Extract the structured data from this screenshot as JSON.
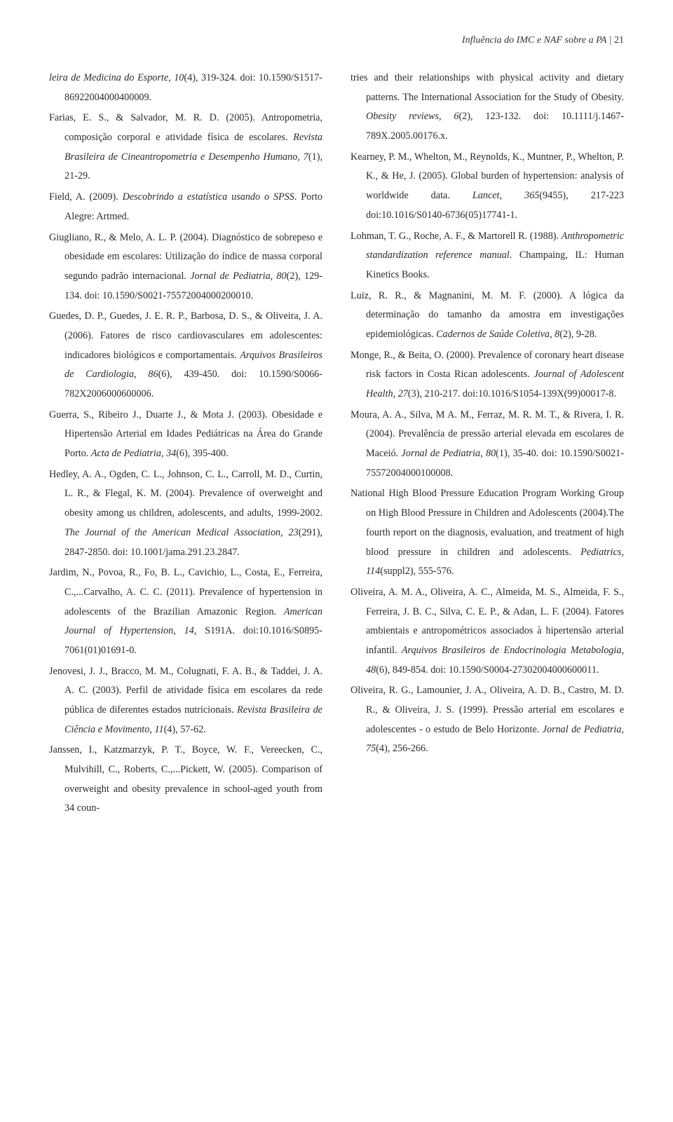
{
  "running_head": {
    "text": "Influência do IMC e NAF sobre a PA",
    "divider": " | ",
    "page": "21"
  },
  "left_column": [
    [
      {
        "t": "leira de Medicina do Esporte, 10",
        "i": true
      },
      {
        "t": "(4), 319-324. doi: 10.1590/S1517-86922004000400009."
      }
    ],
    [
      {
        "t": "Farias, E. S., & Salvador, M. R. D. (2005). Antropometria, composição corporal e atividade física de escolares. "
      },
      {
        "t": "Revista Brasileira de Cineantropometria e Desempenho Humano, 7",
        "i": true
      },
      {
        "t": "(1), 21-29."
      }
    ],
    [
      {
        "t": "Field, A. (2009). "
      },
      {
        "t": "Descobrindo a estatística usando o SPSS",
        "i": true
      },
      {
        "t": ". Porto Alegre: Artmed."
      }
    ],
    [
      {
        "t": "Giugliano, R., & Melo, A. L. P. (2004). Diagnóstico de sobrepeso e obesidade em escolares: Utilização do índice de massa corporal segundo padrão internacional. "
      },
      {
        "t": "Jornal de Pediatria, 80",
        "i": true
      },
      {
        "t": "(2), 129-134. doi: 10.1590/S0021-75572004000200010."
      }
    ],
    [
      {
        "t": "Guedes, D. P., Guedes, J. E. R. P., Barbosa, D. S., & Oliveira, J. A. (2006). Fatores de risco cardiovasculares em adolescentes: indicadores biológicos e comportamentais. "
      },
      {
        "t": "Arquivos Brasileiros de Cardiologia, 86",
        "i": true
      },
      {
        "t": "(6), 439-450. doi: 10.1590/S0066-782X2006000600006."
      }
    ],
    [
      {
        "t": "Guerra, S., Ribeiro J., Duarte J., & Mota J. (2003). Obesidade e Hipertensão Arterial em Idades Pediátricas na Área do Grande Porto. "
      },
      {
        "t": "Acta de Pediatria, 34",
        "i": true
      },
      {
        "t": "(6), 395-400."
      }
    ],
    [
      {
        "t": "Hedley, A. A., Ogden, C. L., Johnson, C. L., Carroll, M. D., Curtin, L. R., & Flegal, K. M. (2004). Prevalence of overweight and obesity among us children, adolescents, and adults, 1999-2002. "
      },
      {
        "t": "The Journal of the American Medical Association, 23",
        "i": true
      },
      {
        "t": "(291), 2847-2850. doi: 10.1001/jama.291.23.2847."
      }
    ],
    [
      {
        "t": "Jardim, N., Povoa, R., Fo, B. L., Cavichio, L., Costa, E., Ferreira, C.,...Carvalho, A. C. C. (2011). Prevalence of hypertension in adolescents of the Brazilian Amazonic Region. "
      },
      {
        "t": "American Journal of Hypertension, 14",
        "i": true
      },
      {
        "t": ", S191A. doi:10.1016/S0895-7061(01)01691-0."
      }
    ],
    [
      {
        "t": "Jenovesi, J. J., Bracco, M. M., Colugnati, F. A. B., & Taddei, J. A. A. C. (2003). Perfil de atividade física em escolares da rede pública de diferentes estados nutricionais. "
      },
      {
        "t": "Revista Brasileira de Ciência e Movimento, 11",
        "i": true
      },
      {
        "t": "(4), 57-62."
      }
    ],
    [
      {
        "t": "Janssen, I., Katzmarzyk, P. T., Boyce, W. F., Vereecken, C., Mulvihill, C., Roberts, C.,...Pickett, W. (2005). Comparison of overweight and obesity prevalence in school-aged youth from 34 coun-"
      }
    ]
  ],
  "right_column": [
    [
      {
        "t": "tries and their relationships with physical activity and dietary patterns. The International Association for the Study of Obesity. "
      },
      {
        "t": "Obesity reviews, 6",
        "i": true
      },
      {
        "t": "(2), 123-132. doi: 10.1111/j.1467-789X.2005.00176.x."
      }
    ],
    [
      {
        "t": "Kearney, P. M., Whelton, M., Reynolds, K., Muntner, P., Whelton, P. K., & He, J. (2005). Global burden of hypertension: analysis of worldwide data. "
      },
      {
        "t": "Lancet, 365",
        "i": true
      },
      {
        "t": "(9455), 217-223 doi:10.1016/S0140-6736(05)17741-1."
      }
    ],
    [
      {
        "t": "Lohman, T. G., Roche, A. F., & Martorell R. (1988). "
      },
      {
        "t": "Anthropometric standardization reference manual",
        "i": true
      },
      {
        "t": ". Champaing, IL: Human Kinetics Books."
      }
    ],
    [
      {
        "t": "Luiz, R. R., & Magnanini, M. M. F. (2000). A lógica da determinação do tamanho da amostra em investigações epidemiológicas. "
      },
      {
        "t": "Cadernos de Saúde Coletiva, 8",
        "i": true
      },
      {
        "t": "(2), 9-28."
      }
    ],
    [
      {
        "t": "Monge, R., & Beita, O. (2000). Prevalence of coronary heart disease risk factors in Costa Rican adolescents. "
      },
      {
        "t": "Journal of Adolescent Health, 27",
        "i": true
      },
      {
        "t": "(3), 210-217. doi:10.1016/S1054-139X(99)00017-8."
      }
    ],
    [
      {
        "t": "Moura, A. A., Silva, M A. M., Ferraz, M. R. M. T., & Rivera, I. R. (2004). Prevalência de pressão arterial elevada em escolares de Maceió. "
      },
      {
        "t": "Jornal de Pediatria, 80",
        "i": true
      },
      {
        "t": "(1), 35-40. doi: 10.1590/S0021-75572004000100008."
      }
    ],
    [
      {
        "t": "National High Blood Pressure Education Program Working Group on High Blood Pressure in Children and Adolescents (2004).The fourth report on the diagnosis, evaluation, and treatment of high blood pressure in children and adolescents. "
      },
      {
        "t": "Pediatrics, 114",
        "i": true
      },
      {
        "t": "(suppl2), 555-576."
      }
    ],
    [
      {
        "t": "Oliveira, A. M. A., Oliveira, A. C., Almeida, M. S., Almeida, F. S., Ferreira, J. B. C., Silva, C. E. P., & Adan, L. F.  (2004). Fatores ambientais e antropométricos associados à hipertensão arterial infantil. "
      },
      {
        "t": "Arquivos Brasileiros de Endocrinologia Metabologia, 48",
        "i": true
      },
      {
        "t": "(6), 849-854. doi: 10.1590/S0004-27302004000600011."
      }
    ],
    [
      {
        "t": "Oliveira, R. G., Lamounier, J. A., Oliveira, A. D. B., Castro, M. D. R., & Oliveira, J. S. (1999). Pressão arterial em escolares e adolescentes - o estudo de Belo Horizonte. "
      },
      {
        "t": "Jornal de Pediatria, 75",
        "i": true
      },
      {
        "t": "(4), 256-266."
      }
    ]
  ]
}
